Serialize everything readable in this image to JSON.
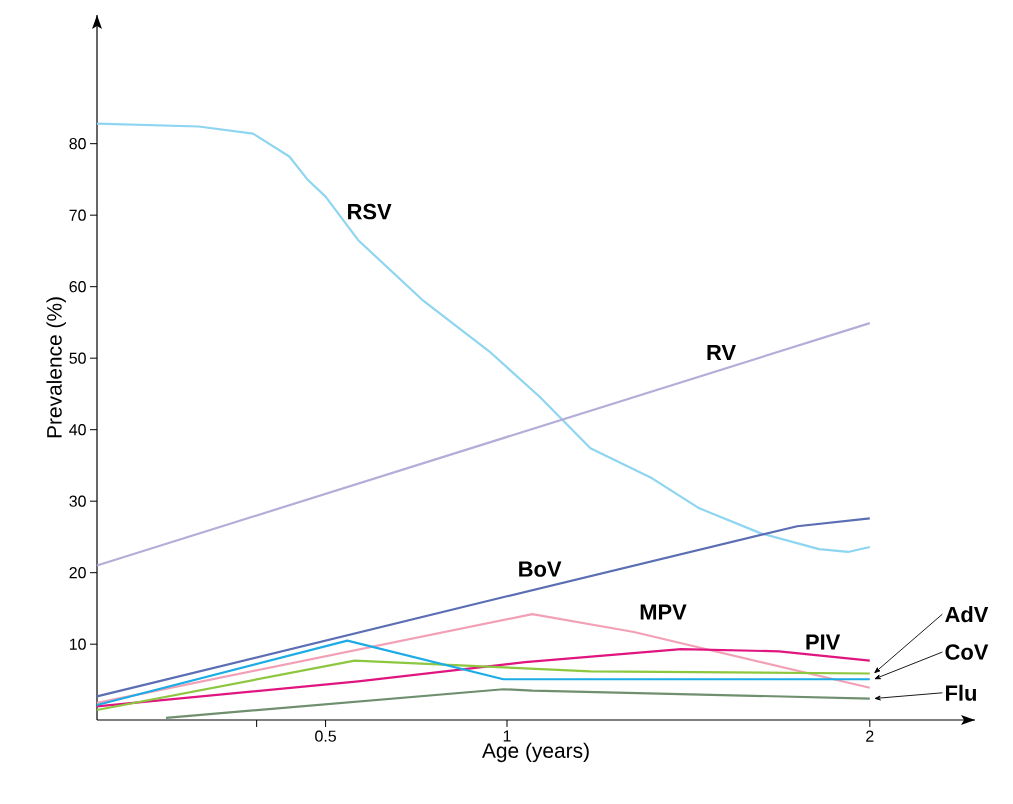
{
  "chart_data": {
    "type": "line",
    "xlabel": "Age (years)",
    "ylabel": "Prevalence (%)",
    "xlim": [
      -0.13,
      2.29
    ],
    "ylim": [
      -0.6,
      98
    ],
    "xticks": [
      {
        "value": 0.31,
        "label": null
      },
      0.5,
      1,
      2
    ],
    "yticks": [
      10,
      20,
      30,
      40,
      50,
      60,
      70,
      80
    ],
    "series": [
      {
        "name": "RSV",
        "color": "#8dd5f0",
        "x": [
          -0.13,
          0.15,
          0.3,
          0.4,
          0.45,
          0.5,
          0.59,
          0.77,
          0.95,
          1.09,
          1.23,
          1.4,
          1.53,
          1.7,
          1.86,
          1.94,
          2.0
        ],
        "values": [
          82.8,
          82.4,
          81.4,
          78.2,
          75,
          72.6,
          66.5,
          58,
          51,
          44.6,
          37.4,
          33.2,
          29,
          25.5,
          23.3,
          22.9,
          23.6
        ]
      },
      {
        "name": "RV",
        "color": "#b3aed8",
        "x": [
          -0.13,
          2.0
        ],
        "values": [
          21,
          54.9
        ]
      },
      {
        "name": "BoV",
        "color": "#5b6eb4",
        "x": [
          -0.13,
          1.0,
          1.8,
          2.0
        ],
        "values": [
          2.7,
          16.7,
          26.5,
          27.6
        ]
      },
      {
        "name": "MPV",
        "color": "#f2a0b5",
        "x": [
          -0.13,
          1.07,
          1.35,
          2.0
        ],
        "values": [
          1.8,
          14.2,
          11.7,
          3.9
        ]
      },
      {
        "name": "PIV",
        "color": "#e0157f",
        "x": [
          -0.13,
          0.59,
          1.05,
          1.48,
          1.75,
          2.0
        ],
        "values": [
          1.3,
          4.8,
          7.5,
          9.3,
          9.0,
          7.7
        ]
      },
      {
        "name": "AdV",
        "color": "#8dc63f",
        "x": [
          -0.13,
          0.58,
          1.23,
          2.0
        ],
        "values": [
          0.8,
          7.7,
          6.2,
          5.9
        ]
      },
      {
        "name": "CoV",
        "color": "#1bace6",
        "x": [
          -0.13,
          0.56,
          0.99,
          2.0
        ],
        "values": [
          1.5,
          10.5,
          5.1,
          5.1
        ]
      },
      {
        "name": "Flu",
        "color": "#6f8f6f",
        "x": [
          0.06,
          0.99,
          1.07,
          2.0
        ],
        "values": [
          -0.3,
          3.7,
          3.5,
          2.4
        ]
      }
    ]
  }
}
